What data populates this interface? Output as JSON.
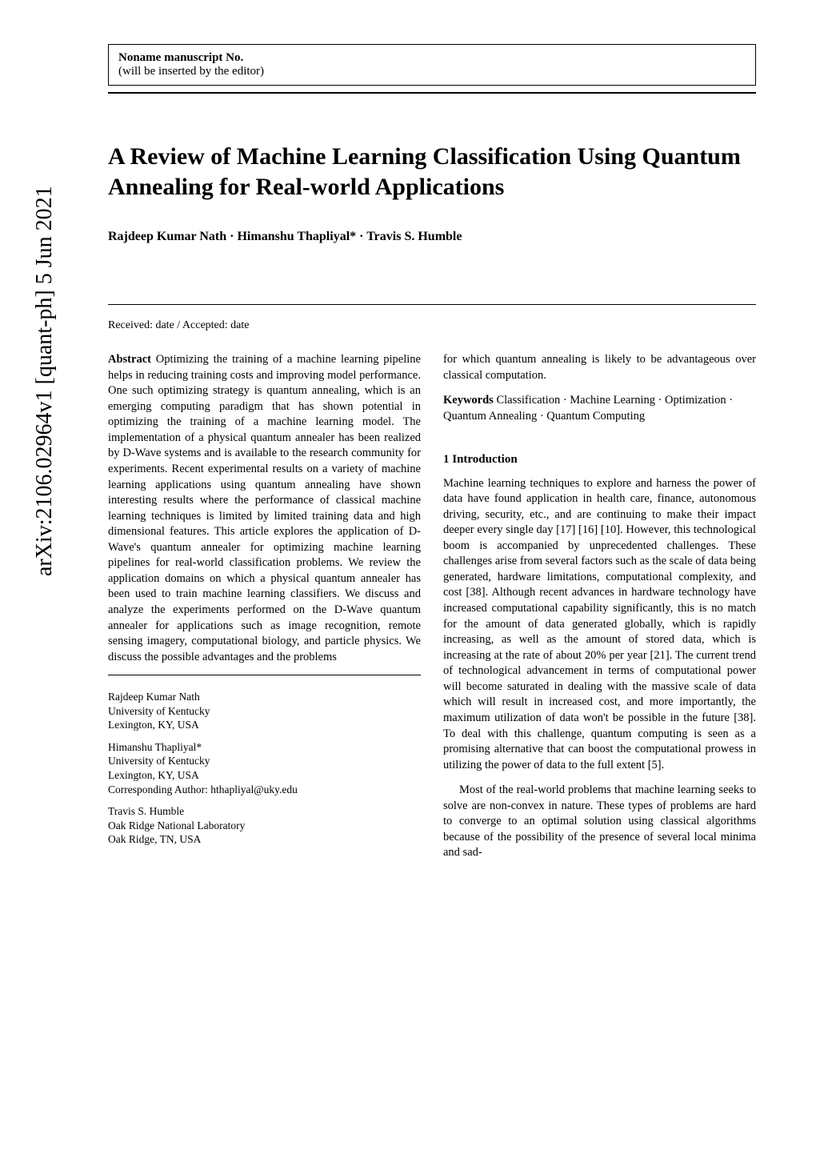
{
  "arxiv": "arXiv:2106.02964v1  [quant-ph]  5 Jun 2021",
  "header": {
    "manuscript_no": "Noname manuscript No.",
    "editor_note": "(will be inserted by the editor)"
  },
  "title": "A Review of Machine Learning Classification Using Quantum Annealing for Real-world Applications",
  "authors": "Rajdeep Kumar Nath · Himanshu Thapliyal* · Travis S. Humble",
  "received": "Received: date / Accepted: date",
  "abstract_label": "Abstract",
  "abstract": " Optimizing the training of a machine learning pipeline helps in reducing training costs and improving model performance. One such optimizing strategy is quantum annealing, which is an emerging computing paradigm that has shown potential in optimizing the training of a machine learning model. The implementation of a physical quantum annealer has been realized by D-Wave systems and is available to the research community for experiments. Recent experimental results on a variety of machine learning applications using quantum annealing have shown interesting results where the performance of classical machine learning techniques is limited by limited training data and high dimensional features. This article explores the application of D-Wave's quantum annealer for optimizing machine learning pipelines for real-world classification problems. We review the application domains on which a physical quantum annealer has been used to train machine learning classifiers. We discuss and analyze the experiments performed on the D-Wave quantum annealer for applications such as image recognition, remote sensing imagery, computational biology, and particle physics. We discuss the possible advantages and the problems",
  "affiliations": [
    {
      "name": "Rajdeep Kumar Nath",
      "inst": "University of Kentucky",
      "loc": "Lexington, KY, USA",
      "corr": ""
    },
    {
      "name": "Himanshu Thapliyal*",
      "inst": "University of Kentucky",
      "loc": "Lexington, KY, USA",
      "corr": "Corresponding Author: hthapliyal@uky.edu"
    },
    {
      "name": "Travis S. Humble",
      "inst": "Oak Ridge National Laboratory",
      "loc": "Oak Ridge, TN, USA",
      "corr": ""
    }
  ],
  "col2_top": "for which quantum annealing is likely to be advantageous over classical computation.",
  "keywords_label": "Keywords",
  "keywords": " Classification · Machine Learning · Optimization · Quantum Annealing · Quantum Computing",
  "section1_title": "1 Introduction",
  "intro_p1": "Machine learning techniques to explore and harness the power of data have found application in health care, finance, autonomous driving, security, etc., and are continuing to make their impact deeper every single day [17] [16] [10]. However, this technological boom is accompanied by unprecedented challenges. These challenges arise from several factors such as the scale of data being generated, hardware limitations, computational complexity, and cost [38]. Although recent advances in hardware technology have increased computational capability significantly, this is no match for the amount of data generated globally, which is rapidly increasing, as well as the amount of stored data, which is increasing at the rate of about 20% per year [21]. The current trend of technological advancement in terms of computational power will become saturated in dealing with the massive scale of data which will result in increased cost, and more importantly, the maximum utilization of data won't be possible in the future [38]. To deal with this challenge, quantum computing is seen as a promising alternative that can boost the computational prowess in utilizing the power of data to the full extent [5].",
  "intro_p2": "Most of the real-world problems that machine learning seeks to solve are non-convex in nature. These types of problems are hard to converge to an optimal solution using classical algorithms because of the possibility of the presence of several local minima and sad-"
}
